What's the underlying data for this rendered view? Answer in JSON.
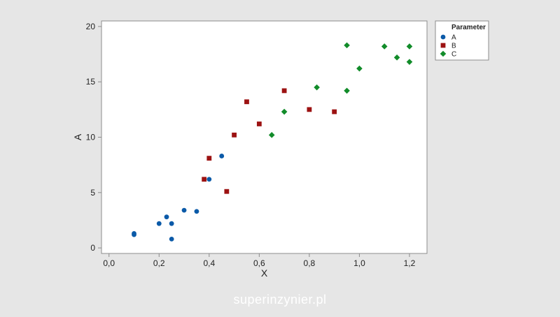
{
  "chart_data": {
    "type": "scatter",
    "xlabel": "X",
    "ylabel": "A",
    "xlim": [
      -0.03,
      1.27
    ],
    "ylim": [
      -0.5,
      20.5
    ],
    "x_ticks": [
      0.0,
      0.2,
      0.4,
      0.6,
      0.8,
      1.0,
      1.2
    ],
    "x_tick_labels": [
      "0,0",
      "0,2",
      "0,4",
      "0,6",
      "0,8",
      "1,0",
      "1,2"
    ],
    "y_ticks": [
      0,
      5,
      10,
      15,
      20
    ],
    "y_tick_labels": [
      "0",
      "5",
      "10",
      "15",
      "20"
    ],
    "grid": false,
    "legend": {
      "title": "Parameter",
      "placement": "right-outside-top"
    },
    "series": [
      {
        "name": "A",
        "marker": "circle",
        "color": "#0b5aa8",
        "points": [
          {
            "x": 0.1,
            "y": 1.3
          },
          {
            "x": 0.1,
            "y": 1.2
          },
          {
            "x": 0.2,
            "y": 2.2
          },
          {
            "x": 0.23,
            "y": 2.8
          },
          {
            "x": 0.25,
            "y": 2.2
          },
          {
            "x": 0.25,
            "y": 0.8
          },
          {
            "x": 0.3,
            "y": 3.4
          },
          {
            "x": 0.35,
            "y": 3.3
          },
          {
            "x": 0.4,
            "y": 6.2
          },
          {
            "x": 0.45,
            "y": 8.3
          }
        ]
      },
      {
        "name": "B",
        "marker": "square",
        "color": "#9c1212",
        "points": [
          {
            "x": 0.38,
            "y": 6.2
          },
          {
            "x": 0.4,
            "y": 8.1
          },
          {
            "x": 0.47,
            "y": 5.1
          },
          {
            "x": 0.5,
            "y": 10.2
          },
          {
            "x": 0.55,
            "y": 13.2
          },
          {
            "x": 0.6,
            "y": 11.2
          },
          {
            "x": 0.7,
            "y": 14.2
          },
          {
            "x": 0.8,
            "y": 12.5
          },
          {
            "x": 0.9,
            "y": 12.3
          }
        ]
      },
      {
        "name": "C",
        "marker": "diamond",
        "color": "#128c2a",
        "points": [
          {
            "x": 0.65,
            "y": 10.2
          },
          {
            "x": 0.7,
            "y": 12.3
          },
          {
            "x": 0.83,
            "y": 14.5
          },
          {
            "x": 0.95,
            "y": 14.2
          },
          {
            "x": 0.95,
            "y": 18.3
          },
          {
            "x": 1.0,
            "y": 16.2
          },
          {
            "x": 1.1,
            "y": 18.2
          },
          {
            "x": 1.15,
            "y": 17.2
          },
          {
            "x": 1.2,
            "y": 18.2
          },
          {
            "x": 1.2,
            "y": 16.8
          }
        ]
      }
    ]
  },
  "watermark": "superinzynier.pl"
}
